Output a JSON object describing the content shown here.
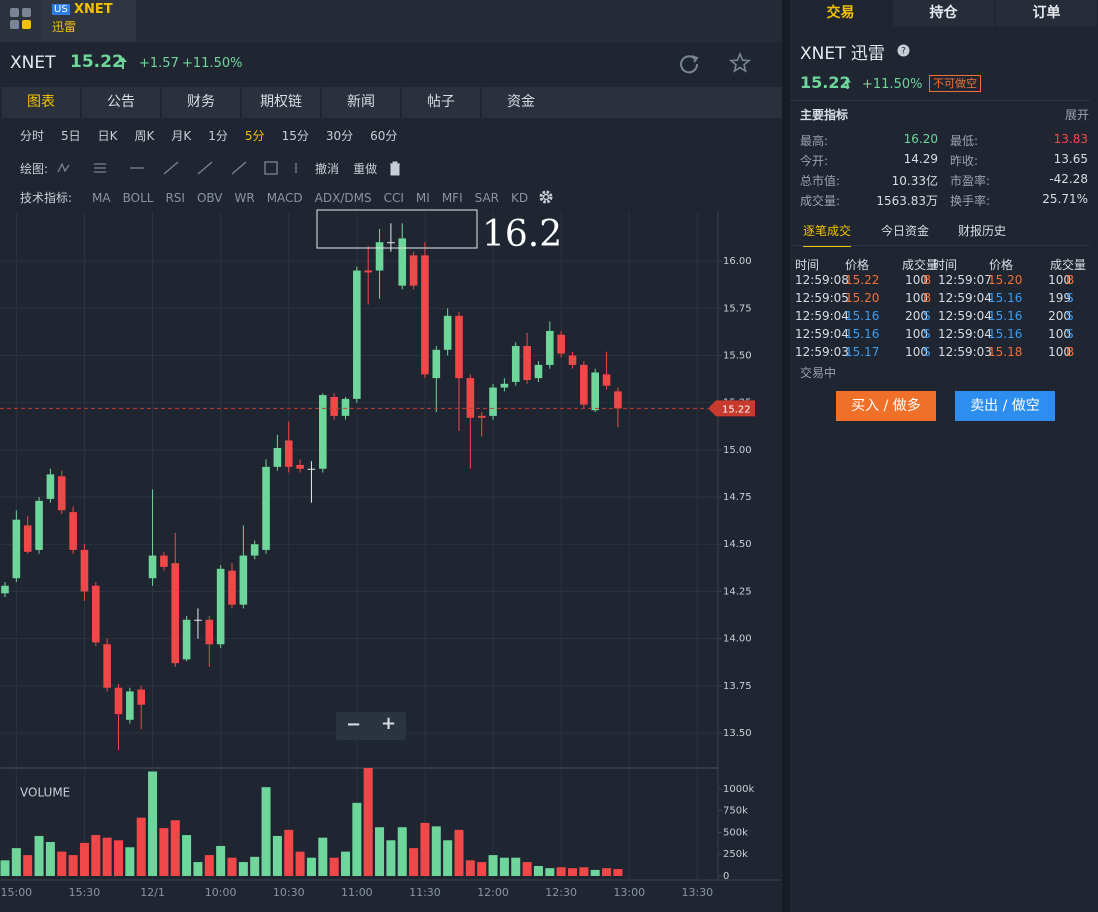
{
  "app_tab": {
    "market": "US",
    "symbol": "XNET",
    "name": "迅雷"
  },
  "header": {
    "symbol": "XNET",
    "price": "15.22",
    "change": "+1.57",
    "change_pct": "+11.50%"
  },
  "tabs": [
    "图表",
    "公告",
    "财务",
    "期权链",
    "新闻",
    "帖子",
    "资金"
  ],
  "periods": [
    "分时",
    "5日",
    "日K",
    "周K",
    "月K",
    "1分",
    "5分",
    "15分",
    "30分",
    "60分"
  ],
  "drawing": {
    "label": "绘图:",
    "undo": "撤消",
    "redo": "重做"
  },
  "indicators": {
    "label": "技术指标:",
    "items": [
      "MA",
      "BOLL",
      "RSI",
      "OBV",
      "WR",
      "MACD",
      "ADX/DMS",
      "CCI",
      "MI",
      "MFI",
      "SAR",
      "KD"
    ]
  },
  "chart_data": {
    "type": "candlestick",
    "up_color": "#6fd69b",
    "down_color": "#f04848",
    "grid": true,
    "x_labels": [
      "15:00",
      "15:30",
      "12/1",
      "10:00",
      "10:30",
      "11:00",
      "11:30",
      "12:00",
      "12:30",
      "13:00",
      "13:30"
    ],
    "open": [
      14.24,
      14.32,
      14.6,
      14.47,
      14.74,
      14.86,
      14.67,
      14.47,
      14.28,
      13.97,
      13.74,
      13.57,
      13.73,
      14.32,
      14.44,
      14.4,
      13.89,
      14.1,
      14.1,
      13.97,
      14.36,
      14.18,
      14.44,
      14.47,
      14.91,
      15.05,
      14.92,
      14.9,
      14.9,
      15.28,
      15.18,
      15.27,
      15.95,
      15.95,
      16.1,
      15.87,
      16.03,
      16.03,
      15.38,
      15.53,
      15.71,
      15.38,
      15.18,
      15.18,
      15.33,
      15.36,
      15.55,
      15.38,
      15.45,
      15.61,
      15.5,
      15.45,
      15.21,
      15.4,
      15.31
    ],
    "high": [
      14.3,
      14.68,
      14.65,
      14.75,
      14.9,
      14.89,
      14.7,
      14.5,
      14.3,
      14.0,
      13.76,
      13.74,
      13.75,
      14.79,
      14.46,
      14.56,
      14.12,
      14.16,
      14.12,
      14.39,
      14.4,
      14.6,
      14.52,
      14.95,
      15.08,
      15.15,
      14.95,
      14.94,
      15.3,
      15.3,
      15.28,
      15.97,
      16.08,
      16.17,
      16.2,
      16.2,
      16.05,
      16.1,
      15.55,
      15.75,
      15.73,
      15.4,
      15.2,
      15.35,
      15.38,
      15.57,
      15.62,
      15.47,
      15.68,
      15.63,
      15.52,
      15.47,
      15.43,
      15.52,
      15.33
    ],
    "low": [
      14.22,
      14.3,
      14.45,
      14.45,
      14.72,
      14.66,
      14.45,
      14.2,
      13.96,
      13.72,
      13.41,
      13.55,
      13.52,
      14.28,
      14.36,
      13.85,
      13.88,
      14.0,
      13.85,
      13.95,
      14.16,
      14.16,
      14.42,
      14.45,
      14.89,
      14.88,
      14.88,
      14.72,
      14.88,
      15.16,
      15.16,
      15.25,
      15.77,
      15.8,
      16.05,
      15.85,
      15.85,
      15.38,
      15.2,
      15.5,
      15.1,
      14.9,
      15.07,
      15.16,
      15.31,
      15.34,
      15.35,
      15.36,
      15.43,
      15.49,
      15.43,
      15.22,
      15.2,
      15.32,
      15.12
    ],
    "close": [
      14.28,
      14.63,
      14.46,
      14.73,
      14.87,
      14.68,
      14.47,
      14.25,
      13.98,
      13.74,
      13.6,
      13.72,
      13.65,
      14.44,
      14.38,
      13.87,
      14.1,
      14.1,
      13.97,
      14.37,
      14.18,
      14.44,
      14.5,
      14.91,
      15.01,
      14.91,
      14.9,
      14.9,
      15.29,
      15.18,
      15.27,
      15.95,
      15.94,
      16.1,
      16.1,
      16.12,
      15.87,
      15.4,
      15.53,
      15.71,
      15.38,
      15.17,
      15.17,
      15.33,
      15.35,
      15.55,
      15.37,
      15.45,
      15.63,
      15.51,
      15.45,
      15.24,
      15.41,
      15.34,
      15.22
    ],
    "ylim": [
      13.32,
      16.26
    ],
    "yticks": [
      {
        "value": 16,
        "label": "16.00"
      },
      {
        "value": 15.75,
        "label": "15.75"
      },
      {
        "value": 15.5,
        "label": "15.50"
      },
      {
        "value": 15.25,
        "label": "15.25"
      },
      {
        "value": 15,
        "label": "15.00"
      },
      {
        "value": 14.75,
        "label": "14.75"
      },
      {
        "value": 14.5,
        "label": "14.50"
      },
      {
        "value": 14.25,
        "label": "14.25"
      },
      {
        "value": 14,
        "label": "14.00"
      },
      {
        "value": 13.75,
        "label": "13.75"
      },
      {
        "value": 13.5,
        "label": "13.50"
      }
    ],
    "current_price": 15.22,
    "current_color": "#c8392e",
    "annotation": "16.2",
    "volume": {
      "label": "VOLUME",
      "values": [
        180000,
        320000,
        240000,
        460000,
        390000,
        280000,
        240000,
        380000,
        470000,
        440000,
        410000,
        330000,
        670000,
        1200000,
        550000,
        640000,
        470000,
        160000,
        240000,
        345000,
        210000,
        160000,
        220000,
        1020000,
        460000,
        530000,
        280000,
        210000,
        440000,
        210000,
        280000,
        840000,
        1240000,
        560000,
        410000,
        560000,
        320000,
        610000,
        570000,
        410000,
        530000,
        180000,
        160000,
        240000,
        210000,
        210000,
        160000,
        115000,
        90000,
        100000,
        90000,
        100000,
        70000,
        90000,
        80000
      ],
      "ylim": [
        0,
        1240000
      ],
      "yticks": [
        0,
        {
          "value": 250000,
          "label": "250k"
        },
        {
          "value": 500000,
          "label": "500k"
        },
        {
          "value": 750000,
          "label": "750k"
        },
        {
          "value": 1000000,
          "label": "1000k"
        }
      ]
    }
  },
  "zoom": {
    "out": "−",
    "in": "+"
  },
  "side": {
    "tabs": [
      "交易",
      "持仓",
      "订单"
    ],
    "title": "XNET 迅雷",
    "price": "15.22",
    "change_pct": "+11.50%",
    "badge": "不可做空",
    "metrics_title": "主要指标",
    "expand": "展开",
    "metrics": [
      [
        {
          "label": "最高:",
          "value": "16.20",
          "color": "#6fd69b"
        },
        {
          "label": "最低:",
          "value": "13.83",
          "color": "#f04848"
        }
      ],
      [
        {
          "label": "今开:",
          "value": "14.29",
          "color": "#d8dde4"
        },
        {
          "label": "昨收:",
          "value": "13.65",
          "color": "#d8dde4"
        }
      ],
      [
        {
          "label": "总市值:",
          "value": "10.33亿",
          "color": "#d8dde4"
        },
        {
          "label": "市盈率:",
          "value": "-42.28",
          "color": "#d8dde4"
        }
      ],
      [
        {
          "label": "成交量:",
          "value": "1563.83万",
          "color": "#d8dde4"
        },
        {
          "label": "换手率:",
          "value": "25.71%",
          "color": "#d8dde4"
        }
      ]
    ],
    "sub_tabs": [
      "逐笔成交",
      "今日资金",
      "财报历史"
    ],
    "trade_header": [
      "时间",
      "价格",
      "成交量",
      "时间",
      "价格",
      "成交量"
    ],
    "trades": [
      [
        {
          "time": "12:59:08",
          "price": "15.22",
          "qty": "100",
          "side": "B",
          "color": "#f0703a"
        },
        {
          "time": "12:59:07",
          "price": "15.20",
          "qty": "100",
          "side": "B",
          "color": "#f0703a"
        }
      ],
      [
        {
          "time": "12:59:05",
          "price": "15.20",
          "qty": "100",
          "side": "B",
          "color": "#f0703a"
        },
        {
          "time": "12:59:04",
          "price": "15.16",
          "qty": "199",
          "side": "S",
          "color": "#3d9bf0"
        }
      ],
      [
        {
          "time": "12:59:04",
          "price": "15.16",
          "qty": "200",
          "side": "S",
          "color": "#3d9bf0"
        },
        {
          "time": "12:59:04",
          "price": "15.16",
          "qty": "200",
          "side": "S",
          "color": "#3d9bf0"
        }
      ],
      [
        {
          "time": "12:59:04",
          "price": "15.16",
          "qty": "100",
          "side": "S",
          "color": "#3d9bf0"
        },
        {
          "time": "12:59:04",
          "price": "15.16",
          "qty": "100",
          "side": "S",
          "color": "#3d9bf0"
        }
      ],
      [
        {
          "time": "12:59:03",
          "price": "15.17",
          "qty": "100",
          "side": "S",
          "color": "#3d9bf0"
        },
        {
          "time": "12:59:03",
          "price": "15.18",
          "qty": "100",
          "side": "B",
          "color": "#f0703a"
        }
      ]
    ],
    "status": "交易中",
    "buy": "买入 / 做多",
    "sell": "卖出 / 做空"
  }
}
